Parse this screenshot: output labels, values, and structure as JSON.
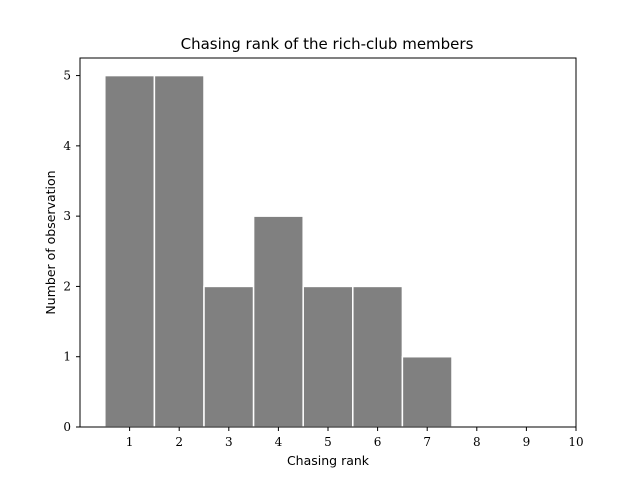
{
  "chart_data": {
    "type": "bar",
    "title": "Chasing rank of the rich-club members",
    "xlabel": "Chasing rank",
    "ylabel": "Number of observation",
    "categories": [
      "1",
      "2",
      "3",
      "4",
      "5",
      "6",
      "7",
      "8",
      "9",
      "10"
    ],
    "values": [
      5,
      5,
      2,
      3,
      2,
      2,
      1,
      0,
      0,
      0
    ],
    "xlim": [
      0,
      10
    ],
    "ylim": [
      0,
      5.25
    ],
    "xticks": [
      "1",
      "2",
      "3",
      "4",
      "5",
      "6",
      "7",
      "8",
      "9",
      "10"
    ],
    "yticks": [
      "0",
      "1",
      "2",
      "3",
      "4",
      "5"
    ],
    "grid": false,
    "colors": {
      "bar": "#808080",
      "bar_edge": "#ffffff"
    }
  }
}
